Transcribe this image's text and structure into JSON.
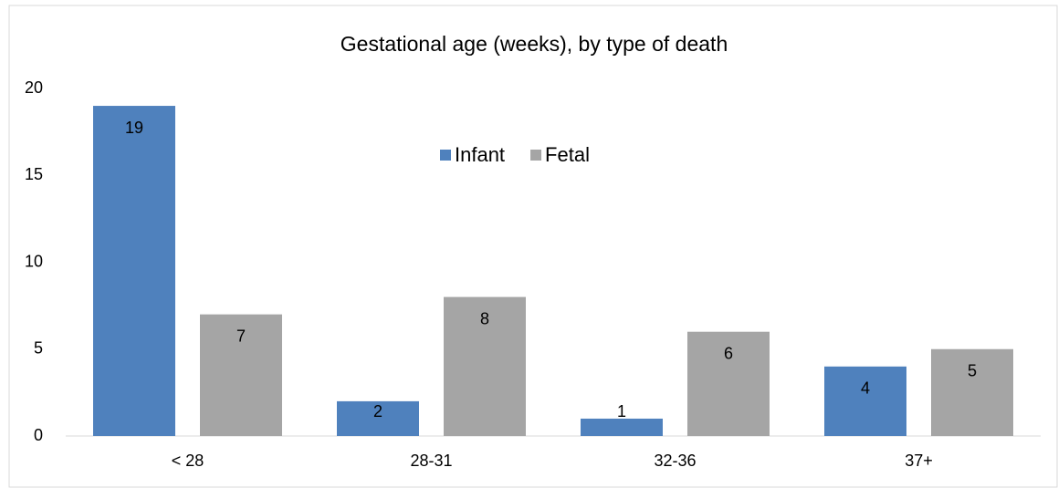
{
  "chart_data": {
    "type": "bar",
    "title": "Gestational age (weeks), by type of death",
    "categories": [
      "< 28",
      "28-31",
      "32-36",
      "37+"
    ],
    "series": [
      {
        "name": "Infant",
        "color": "#4f81bd",
        "values": [
          19,
          2,
          1,
          4
        ]
      },
      {
        "name": "Fetal",
        "color": "#a5a5a5",
        "values": [
          7,
          8,
          6,
          5
        ]
      }
    ],
    "ylim": [
      0,
      20
    ],
    "yticks": [
      0,
      5,
      10,
      15,
      20
    ],
    "grid": false,
    "legend": "top"
  }
}
